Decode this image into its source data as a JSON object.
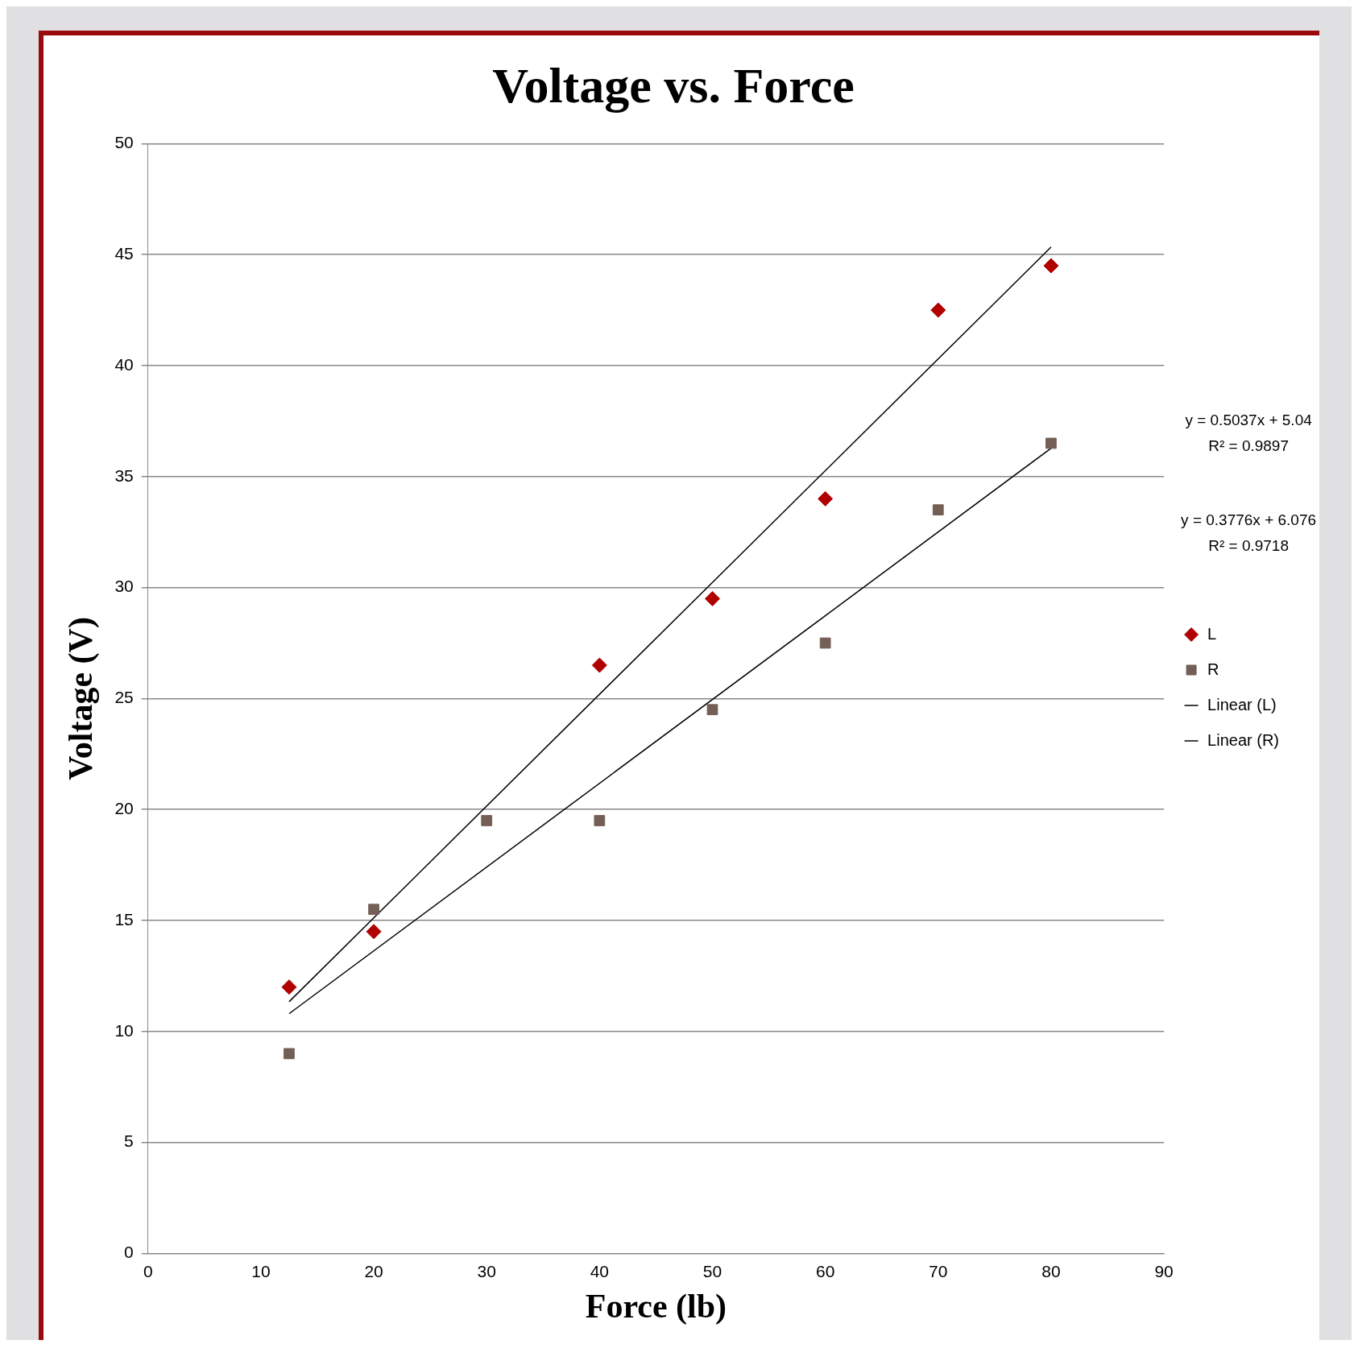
{
  "chart_data": {
    "type": "scatter",
    "title": "Voltage vs. Force",
    "xlabel": "Force (lb)",
    "ylabel": "Voltage (V)",
    "xlim": [
      0,
      90
    ],
    "xticks": [
      0,
      10,
      20,
      30,
      40,
      50,
      60,
      70,
      80,
      90
    ],
    "ylim": [
      0,
      50
    ],
    "yticks": [
      0,
      5,
      10,
      15,
      20,
      25,
      30,
      35,
      40,
      45,
      50
    ],
    "grid": "y",
    "legend": "right",
    "series": [
      {
        "name": "L",
        "marker": "diamond",
        "color": "#b00000",
        "x": [
          12.5,
          20,
          40,
          50,
          60,
          70,
          80
        ],
        "values": [
          12,
          14.5,
          26.5,
          29.5,
          34,
          42.5,
          44.5
        ]
      },
      {
        "name": "R",
        "marker": "square",
        "color": "#735f55",
        "x": [
          12.5,
          20,
          30,
          40,
          50,
          60,
          70,
          80
        ],
        "values": [
          9,
          15.5,
          19.5,
          19.5,
          24.5,
          27.5,
          33.5,
          36.5
        ]
      },
      {
        "name": "Linear (L)",
        "type": "line",
        "marker": "none",
        "color": "#000000",
        "x": [
          12.5,
          80
        ],
        "values": [
          11.34,
          45.34
        ]
      },
      {
        "name": "Linear (R)",
        "type": "line",
        "marker": "none",
        "color": "#000000",
        "x": [
          12.5,
          80
        ],
        "values": [
          10.8,
          36.28
        ]
      }
    ],
    "annotations": [
      "y = 0.5037x + 5.04\nR² = 0.9897",
      "y = 0.3776x + 6.076\nR² = 0.9718"
    ]
  }
}
